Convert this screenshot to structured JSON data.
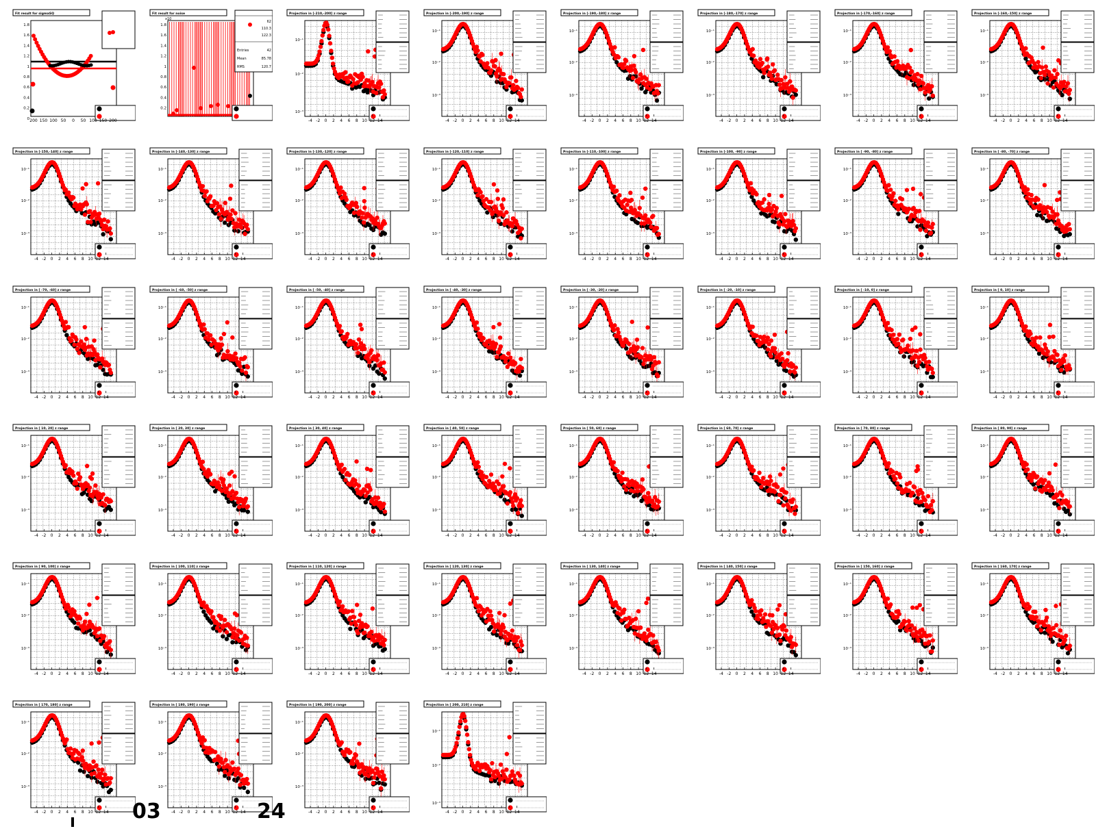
{
  "chart_data": {
    "panels": [
      {
        "title": "Fit result for sigmaSQ",
        "type": "scatter",
        "x_ticks": [
          "200",
          "150",
          "100",
          "50",
          "0",
          "50",
          "100",
          "150",
          "200"
        ],
        "y_ticks": [
          "1.8",
          "1.6",
          "1.4",
          "1.2",
          "1",
          "0.8",
          "0.6",
          "0.4",
          "0.2",
          "0"
        ]
      },
      {
        "title": "Fit result for noise",
        "type": "bar",
        "x10": "x10",
        "y_ticks": [
          "1.8",
          "1.6",
          "1.4",
          "1.2",
          "1",
          "0.8",
          "0.6",
          "0.4",
          "0.2"
        ],
        "stats": {
          "top": [
            "62",
            "110.3",
            "122.3"
          ],
          "Entries_label": "Entries",
          "Entries": "42",
          "Mean_label": "Mean",
          "Mean": "85.78",
          "RMS_label": "RMS",
          "RMS": "120.7"
        }
      },
      {
        "title": "Projection in [-210,-200] z range",
        "variant": "narrow"
      },
      {
        "title": "Projection in [-200,-190] z range"
      },
      {
        "title": "Projection in [-190,-180] z range"
      },
      {
        "title": "Projection in [-180,-170] z range"
      },
      {
        "title": "Projection in [-170,-160] z range"
      },
      {
        "title": "Projection in [-160,-150] z range"
      },
      {
        "title": "Projection in [-150,-140] z range"
      },
      {
        "title": "Projection in [-140,-130] z range"
      },
      {
        "title": "Projection in [-130,-120] z range"
      },
      {
        "title": "Projection in [-120,-110] z range"
      },
      {
        "title": "Projection in [-110,-100] z range"
      },
      {
        "title": "Projection in [-100, -90] z range"
      },
      {
        "title": "Projection in [ -90, -80] z range"
      },
      {
        "title": "Projection in [ -80, -70] z range"
      },
      {
        "title": "Projection in [ -70, -60] z range"
      },
      {
        "title": "Projection in [ -60, -50] z range"
      },
      {
        "title": "Projection in [ -50, -40] z range"
      },
      {
        "title": "Projection in [ -40, -30] z range"
      },
      {
        "title": "Projection in [ -30, -20] z range"
      },
      {
        "title": "Projection in [ -20, -10] z range"
      },
      {
        "title": "Projection in [ -10,   0] z range"
      },
      {
        "title": "Projection in [   0,  10] z range"
      },
      {
        "title": "Projection in [  10,  20] z range"
      },
      {
        "title": "Projection in [  20,  30] z range"
      },
      {
        "title": "Projection in [  30,  40] z range"
      },
      {
        "title": "Projection in [  40,  50] z range"
      },
      {
        "title": "Projection in [  50,  60] z range"
      },
      {
        "title": "Projection in [  60,  70] z range"
      },
      {
        "title": "Projection in [  70,  80] z range"
      },
      {
        "title": "Projection in [  80,  90] z range"
      },
      {
        "title": "Projection in [  90, 100] z range"
      },
      {
        "title": "Projection in [ 100, 110] z range"
      },
      {
        "title": "Projection in [ 110, 120] z range"
      },
      {
        "title": "Projection in [ 120, 130] z range"
      },
      {
        "title": "Projection in [ 130, 140] z range"
      },
      {
        "title": "Projection in [ 140, 150] z range"
      },
      {
        "title": "Projection in [ 150, 160] z range"
      },
      {
        "title": "Projection in [ 160, 170] z range"
      },
      {
        "title": "Projection in [ 170, 180] z range"
      },
      {
        "title": "Projection in [ 180, 190] z range"
      },
      {
        "title": "Projection in [ 190, 200] z range"
      },
      {
        "title": "Projection in [ 200, 210] z range",
        "variant": "narrow"
      }
    ],
    "projection_x_ticks": [
      "-4",
      "-2",
      "0",
      "2",
      "4",
      "6",
      "8",
      "10",
      "12",
      "14"
    ],
    "projection_y_ticks": [
      "10⁻¹",
      "10⁻²",
      "10⁻³"
    ],
    "series_colors": [
      "#000000",
      "#ff0000"
    ],
    "log_y": true
  },
  "footer": {
    "text_left": "03",
    "text_right": "24"
  }
}
